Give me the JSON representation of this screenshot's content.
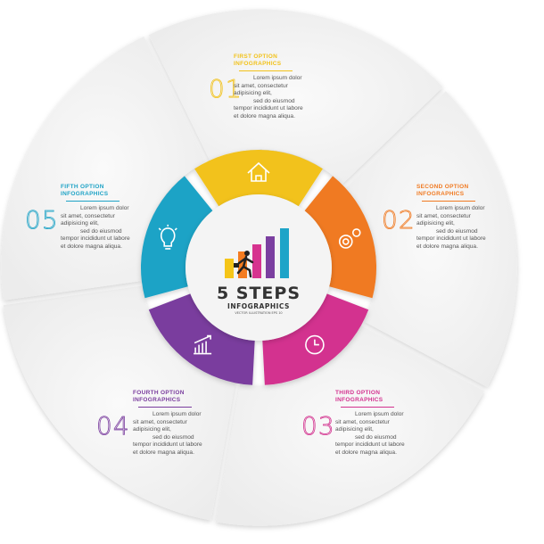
{
  "center": {
    "title": "5 STEPS",
    "subtitle": "INFOGRAPHICS",
    "caption": "VECTOR ILLUSTRATION EPS 10",
    "bar_colors": [
      "#f5c518",
      "#f47c20",
      "#d6338f",
      "#7b3fa0",
      "#1ea4c8"
    ]
  },
  "steps": [
    {
      "number": "01",
      "title1": "FIRST OPTION",
      "title2": "INFOGRAPHICS",
      "text1": "Lorem ipsum dolor",
      "text2": "sit amet, consectetur adipisicing elit,",
      "text3": "sed do eiusmod",
      "text4": "tempor incididunt ut labore et dolore magna aliqua.",
      "color": "#f2c21b",
      "icon": "home-icon"
    },
    {
      "number": "02",
      "title1": "SECOND OPTION",
      "title2": "INFOGRAPHICS",
      "text1": "Lorem ipsum dolor",
      "text2": "sit amet, consectetur adipisicing elit,",
      "text3": "sed do eiusmod",
      "text4": "tempor incididunt ut labore et dolore magna aliqua.",
      "color": "#f07a22",
      "icon": "gears-icon"
    },
    {
      "number": "03",
      "title1": "THIRD OPTION",
      "title2": "INFOGRAPHICS",
      "text1": "Lorem ipsum dolor",
      "text2": "sit amet, consectetur adipisicing elit,",
      "text3": "sed do eiusmod",
      "text4": "tempor incididunt ut labore et dolore magna aliqua.",
      "color": "#d3328f",
      "icon": "clock-icon"
    },
    {
      "number": "04",
      "title1": "FOURTH OPTION",
      "title2": "INFOGRAPHICS",
      "text1": "Lorem ipsum dolor",
      "text2": "sit amet, consectetur adipisicing elit,",
      "text3": "sed do eiusmod",
      "text4": "tempor incididunt ut labore et dolore magna aliqua.",
      "color": "#7a3d9e",
      "icon": "chart-icon"
    },
    {
      "number": "05",
      "title1": "FIFTH OPTION",
      "title2": "INFOGRAPHICS",
      "text1": "Lorem ipsum dolor",
      "text2": "sit amet, consectetur adipisicing elit,",
      "text3": "sed do eiusmod",
      "text4": "tempor incididunt ut labore et dolore magna aliqua.",
      "color": "#1fa3c6",
      "icon": "lightbulb-icon"
    }
  ]
}
